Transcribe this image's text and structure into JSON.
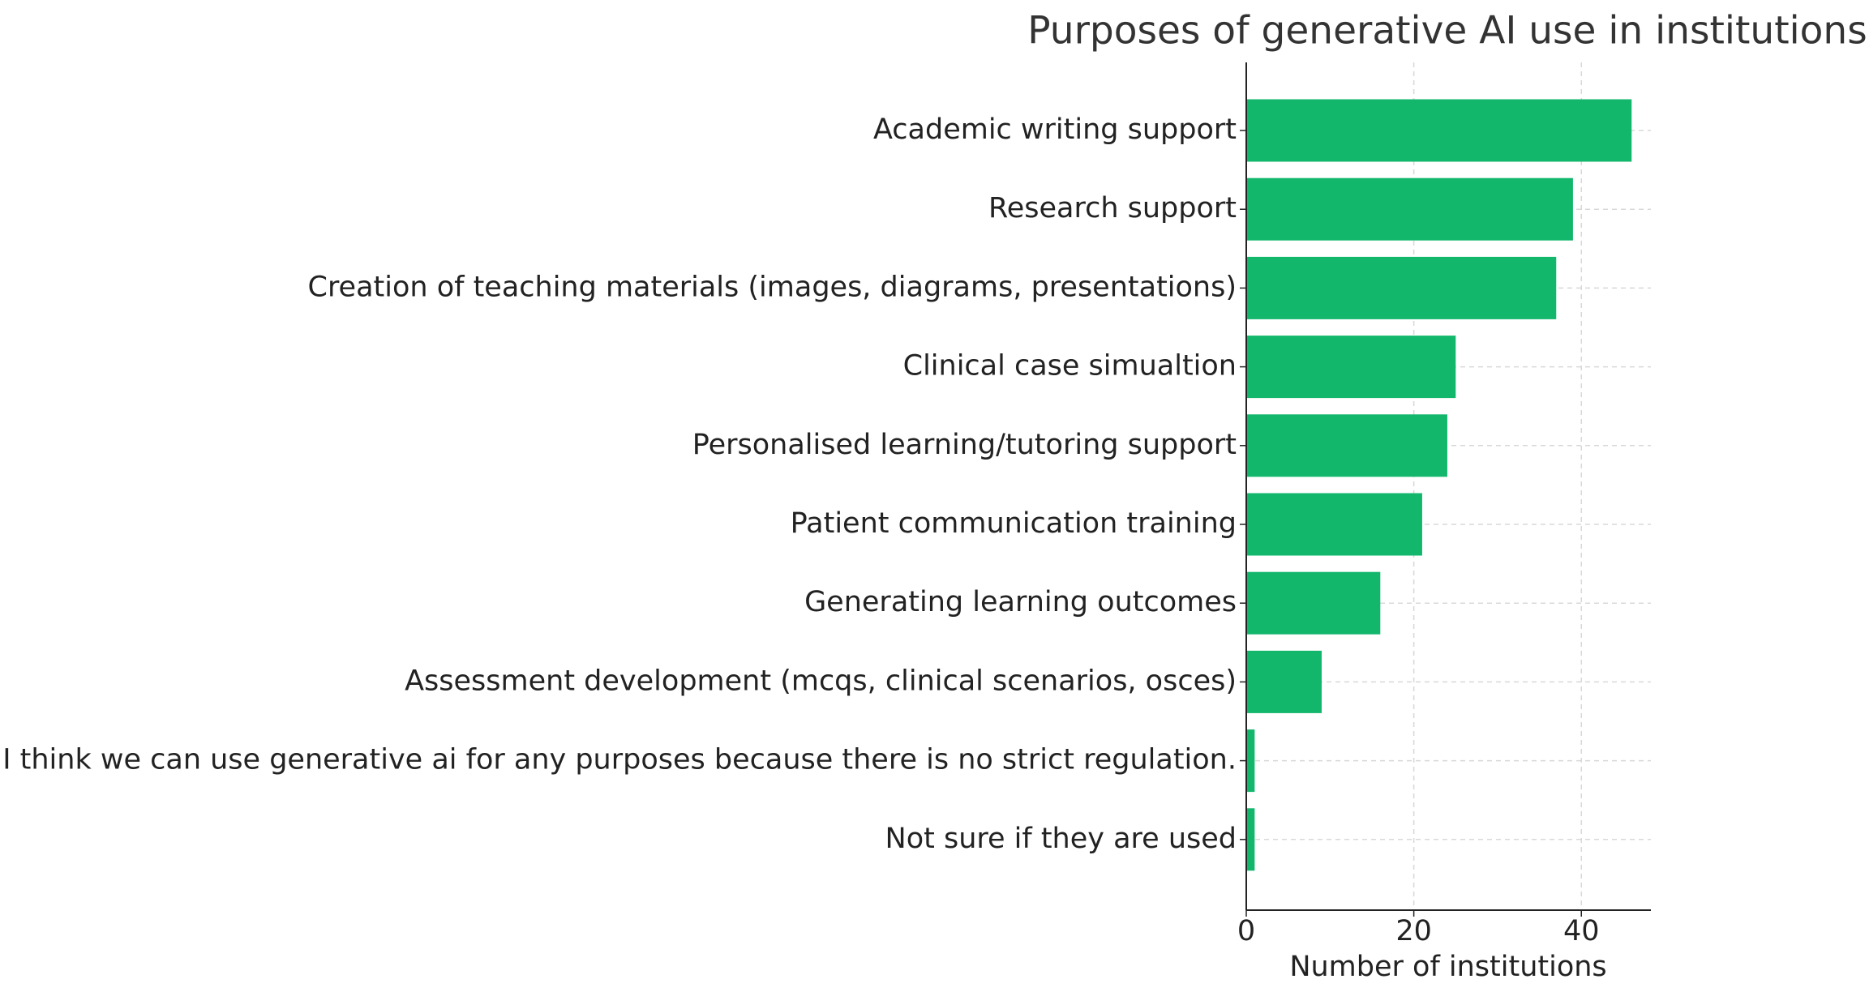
{
  "chart_data": {
    "type": "barh",
    "title": "Purposes of generative AI use in institutions",
    "xlabel": "Number of institutions",
    "categories": [
      "Academic writing support",
      "Research support",
      "Creation of teaching materials (images, diagrams, presentations)",
      "Clinical case simualtion",
      "Personalised learning/tutoring support",
      "Patient communication training",
      "Generating learning outcomes",
      "Assessment development (mcqs, clinical scenarios, osces)",
      "I think we can use generative ai for any purposes because there is no strict regulation.",
      "Not sure if they are used"
    ],
    "values": [
      46,
      39,
      37,
      25,
      24,
      21,
      16,
      9,
      1,
      1
    ],
    "color": "#12b76c",
    "xlim": [
      0,
      48.3
    ],
    "xticks": [
      0,
      20,
      40
    ],
    "grid": true
  }
}
